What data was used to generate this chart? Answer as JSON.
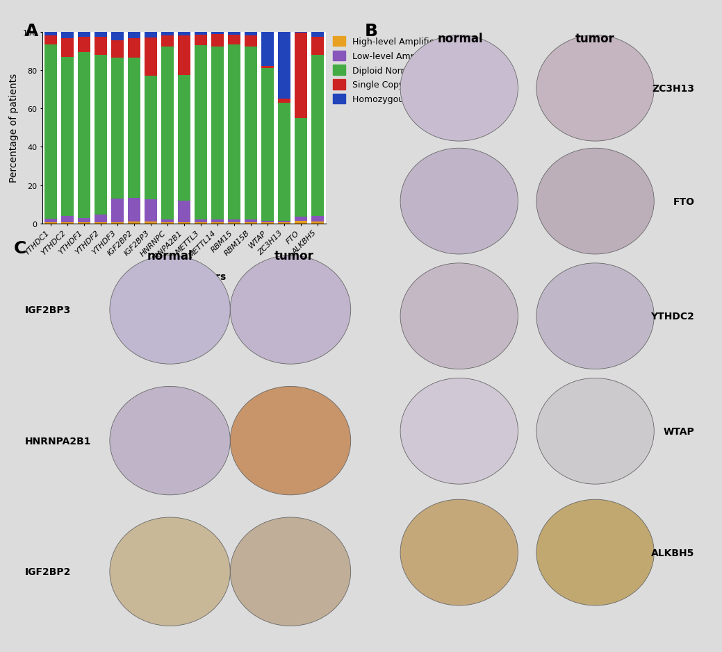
{
  "categories": [
    "YTHDC1",
    "YTHDC2",
    "YTHDF1",
    "YTHDF2",
    "YTHDF3",
    "IGF2BP2",
    "IGF2BP3",
    "HNRNPC",
    "HNRNPA2B1",
    "METTL3",
    "METTL14",
    "RBM15",
    "RBM15B",
    "WTAP",
    "ZC3H13",
    "FTO",
    "ALKBH5"
  ],
  "high_level_amp": [
    0.5,
    0.5,
    0.5,
    0.5,
    0.5,
    1.0,
    1.0,
    0.5,
    0.5,
    0.5,
    0.5,
    0.5,
    0.5,
    0.5,
    0.5,
    1.5,
    1.0
  ],
  "low_level_amp": [
    2.0,
    3.5,
    2.5,
    4.0,
    12.5,
    12.5,
    11.5,
    1.5,
    11.5,
    1.5,
    1.5,
    1.5,
    1.5,
    1.0,
    1.0,
    2.0,
    3.0
  ],
  "diploid_normal": [
    91.0,
    83.0,
    86.5,
    83.5,
    73.5,
    73.0,
    64.5,
    90.5,
    65.5,
    91.0,
    90.5,
    91.5,
    90.5,
    79.5,
    61.5,
    51.5,
    84.0
  ],
  "single_copy_del": [
    4.5,
    9.5,
    8.0,
    9.5,
    9.0,
    10.0,
    20.0,
    5.5,
    20.5,
    5.5,
    6.5,
    5.0,
    5.5,
    1.0,
    2.0,
    44.5,
    9.5
  ],
  "homozygous_del": [
    2.0,
    3.5,
    2.5,
    2.5,
    4.5,
    3.5,
    3.0,
    2.0,
    2.0,
    1.5,
    1.0,
    1.5,
    2.0,
    18.0,
    35.0,
    0.5,
    2.5
  ],
  "colors": {
    "high_level_amp": "#E8A020",
    "low_level_amp": "#8855BB",
    "diploid_normal": "#44AA44",
    "single_copy_del": "#CC2222",
    "homozygous_del": "#2244BB"
  },
  "legend_labels": [
    "High-level Amplification",
    "Low-level Amplification",
    "Diploid Normal Copy",
    "Single Copy Deletion",
    "Homozygous Deletion"
  ],
  "ylabel": "Percentage of patients",
  "xlabel": "m6A regulators",
  "ylim": [
    0,
    100
  ],
  "bg_color": "#DCDCDC",
  "panel_label_fontsize": 18,
  "axis_fontsize": 10,
  "tick_fontsize": 8,
  "legend_fontsize": 9,
  "B_labels_right": [
    "ZC3H13",
    "FTO",
    "YTHDC2",
    "WTAP",
    "ALKBH5"
  ],
  "C_labels_left": [
    "IGF2BP3",
    "HNRNPA2B1",
    "IGF2BP2"
  ],
  "white_bg": "#FFFFFF"
}
